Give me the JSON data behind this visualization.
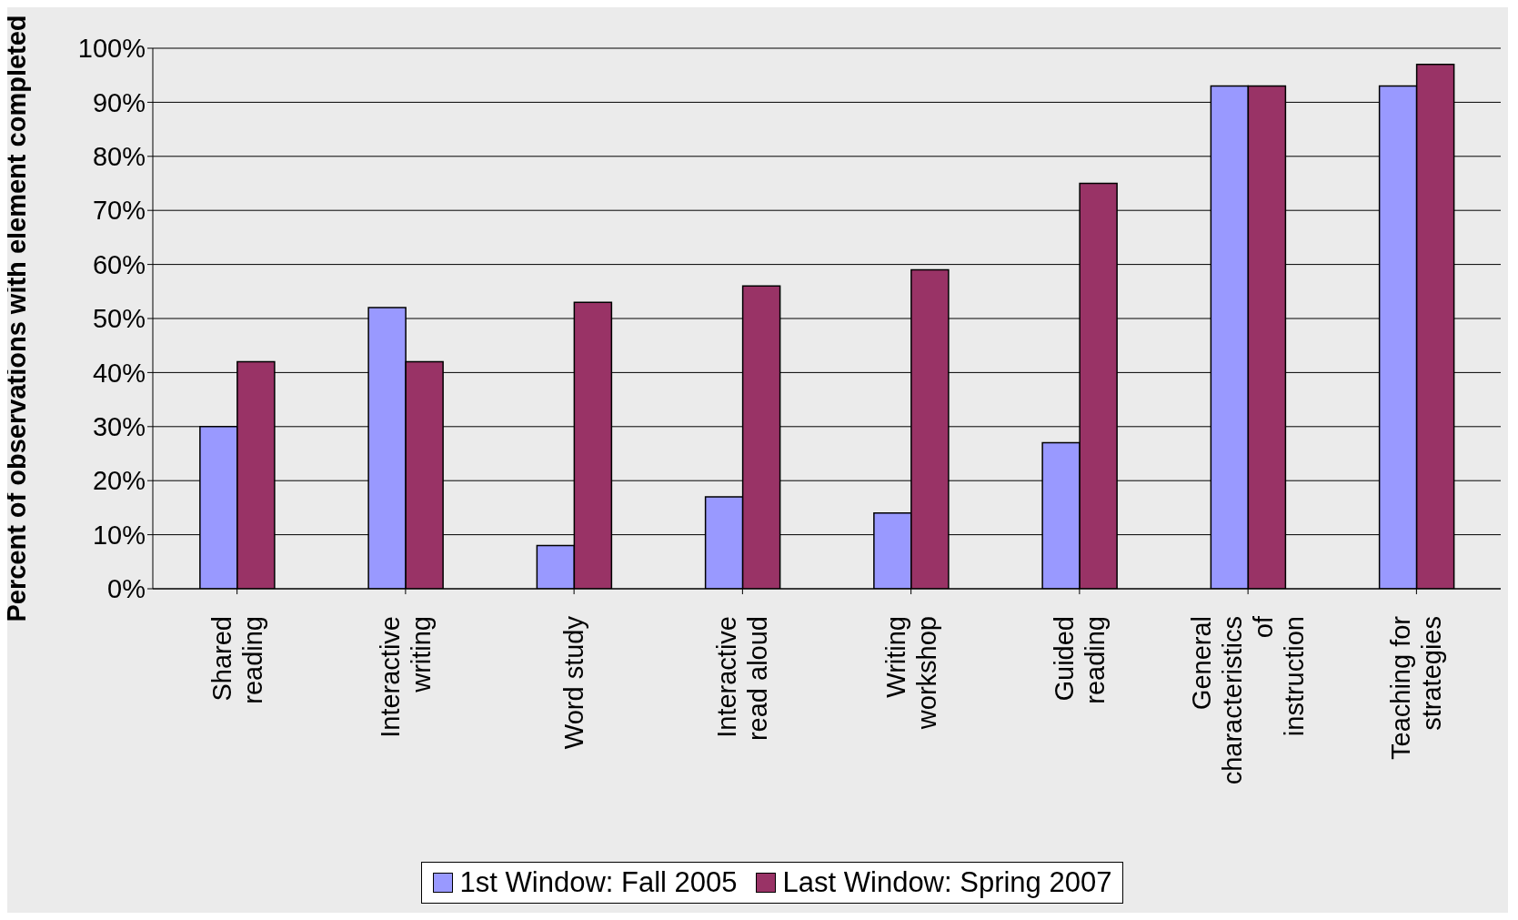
{
  "chart_data": {
    "type": "bar",
    "ylabel": "Percent of observations with element completed",
    "categories": [
      "Shared reading",
      "Interactive writing",
      "Word study",
      "Interactive read aloud",
      "Writing workshop",
      "Guided reading",
      "General characteristics of instruction",
      "Teaching for strategies"
    ],
    "series": [
      {
        "name": "1st Window: Fall 2005",
        "color": "#9999ff",
        "values": [
          30,
          52,
          8,
          17,
          14,
          27,
          93,
          93
        ]
      },
      {
        "name": "Last Window: Spring 2007",
        "color": "#993366",
        "values": [
          42,
          42,
          53,
          56,
          59,
          75,
          93,
          97
        ]
      }
    ],
    "ylim": [
      0,
      100
    ],
    "yticks": [
      {
        "value": 0,
        "label": "0%"
      },
      {
        "value": 10,
        "label": "10%"
      },
      {
        "value": 20,
        "label": "20%"
      },
      {
        "value": 30,
        "label": "30%"
      },
      {
        "value": 40,
        "label": "40%"
      },
      {
        "value": 50,
        "label": "50%"
      },
      {
        "value": 60,
        "label": "60%"
      },
      {
        "value": 70,
        "label": "70%"
      },
      {
        "value": 80,
        "label": "80%"
      },
      {
        "value": 90,
        "label": "90%"
      },
      {
        "value": 100,
        "label": "100%"
      }
    ],
    "grid": "y",
    "legend": "bottom"
  }
}
